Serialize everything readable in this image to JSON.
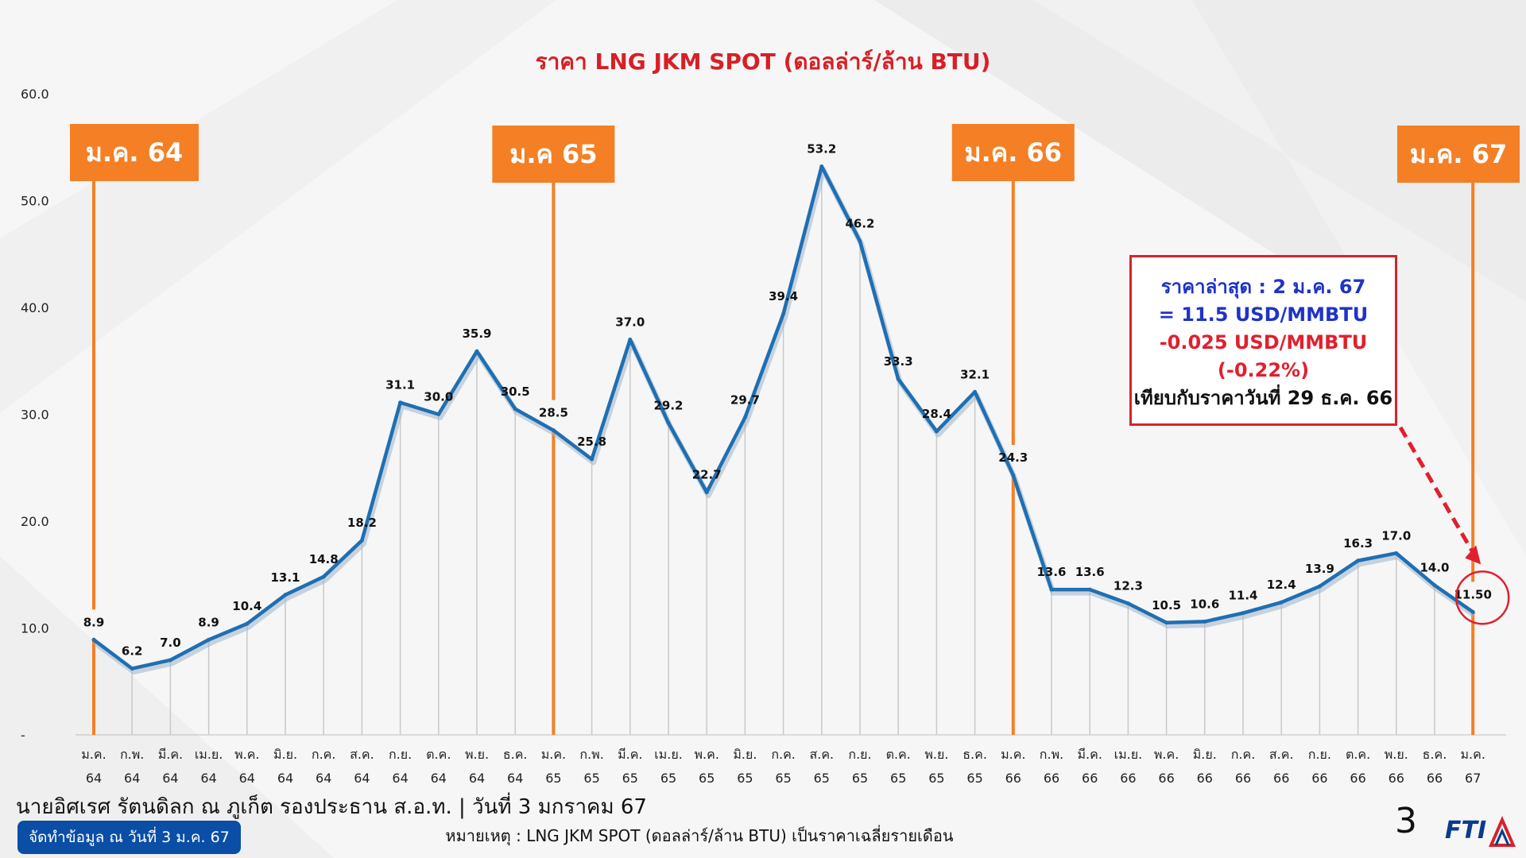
{
  "chart_data": {
    "type": "line",
    "title": "ราคา LNG JKM SPOT (ดอลล่าร์/ล้าน BTU)",
    "y_ticks": [
      "-",
      "10.0",
      "20.0",
      "30.0",
      "40.0",
      "50.0",
      "60.0"
    ],
    "ylim": [
      0,
      60
    ],
    "grid": "vertical drop lines",
    "categories": [
      [
        "ม.ค.",
        "64"
      ],
      [
        "ก.พ.",
        "64"
      ],
      [
        "มี.ค.",
        "64"
      ],
      [
        "เม.ย.",
        "64"
      ],
      [
        "พ.ค.",
        "64"
      ],
      [
        "มิ.ย.",
        "64"
      ],
      [
        "ก.ค.",
        "64"
      ],
      [
        "ส.ค.",
        "64"
      ],
      [
        "ก.ย.",
        "64"
      ],
      [
        "ต.ค.",
        "64"
      ],
      [
        "พ.ย.",
        "64"
      ],
      [
        "ธ.ค.",
        "64"
      ],
      [
        "ม.ค.",
        "65"
      ],
      [
        "ก.พ.",
        "65"
      ],
      [
        "มี.ค.",
        "65"
      ],
      [
        "เม.ย.",
        "65"
      ],
      [
        "พ.ค.",
        "65"
      ],
      [
        "มิ.ย.",
        "65"
      ],
      [
        "ก.ค.",
        "65"
      ],
      [
        "ส.ค.",
        "65"
      ],
      [
        "ก.ย.",
        "65"
      ],
      [
        "ต.ค.",
        "65"
      ],
      [
        "พ.ย.",
        "65"
      ],
      [
        "ธ.ค.",
        "65"
      ],
      [
        "ม.ค.",
        "66"
      ],
      [
        "ก.พ.",
        "66"
      ],
      [
        "มี.ค.",
        "66"
      ],
      [
        "เม.ย.",
        "66"
      ],
      [
        "พ.ค.",
        "66"
      ],
      [
        "มิ.ย.",
        "66"
      ],
      [
        "ก.ค.",
        "66"
      ],
      [
        "ส.ค.",
        "66"
      ],
      [
        "ก.ย.",
        "66"
      ],
      [
        "ต.ค.",
        "66"
      ],
      [
        "พ.ย.",
        "66"
      ],
      [
        "ธ.ค.",
        "66"
      ],
      [
        "ม.ค.",
        "67"
      ]
    ],
    "values": [
      8.9,
      6.2,
      7.0,
      8.9,
      10.4,
      13.1,
      14.8,
      18.2,
      31.1,
      30.0,
      35.9,
      30.5,
      28.5,
      25.8,
      37.0,
      29.2,
      22.7,
      29.7,
      39.4,
      53.2,
      46.2,
      33.3,
      28.4,
      32.1,
      24.3,
      13.6,
      13.6,
      12.3,
      10.5,
      10.6,
      11.4,
      12.4,
      13.9,
      16.3,
      17.0,
      14.0,
      11.5
    ],
    "value_labels": [
      "8.9",
      "6.2",
      "7.0",
      "8.9",
      "10.4",
      "13.1",
      "14.8",
      "18.2",
      "31.1",
      "30.0",
      "35.9",
      "30.5",
      "28.5",
      "25.8",
      "37.0",
      "29.2",
      "22.7",
      "29.7",
      "39.4",
      "53.2",
      "46.2",
      "33.3",
      "28.4",
      "32.1",
      "24.3",
      "13.6",
      "13.6",
      "12.3",
      "10.5",
      "10.6",
      "11.4",
      "12.4",
      "13.9",
      "16.3",
      "17.0",
      "14.0",
      "11.50"
    ],
    "markers": [
      {
        "label": "ม.ค. 64",
        "index": 0
      },
      {
        "label": "ม.ค 65",
        "index": 12
      },
      {
        "label": "ม.ค. 66",
        "index": 24
      },
      {
        "label": "ม.ค. 67",
        "index": 36
      }
    ],
    "line_color": "#1f6fb2",
    "marker_color": "#f47f25",
    "highlight_color": "#e0202e"
  },
  "info_box": {
    "line1": "ราคาล่าสุด : 2 ม.ค. 67",
    "line2": "= 11.5 USD/MMBTU",
    "line3": "-0.025 USD/MMBTU",
    "line4": "(-0.22%)",
    "line5": "เทียบกับราคาวันที่ 29 ธ.ค. 66"
  },
  "footer": {
    "presenter": "นายอิศเรศ รัตนดิลก ณ ภูเก็ต รองประธาน ส.อ.ท. | วันที่ 3 มกราคม 67",
    "badge": "จัดทำข้อมูล ณ วันที่ 3 ม.ค. 67",
    "note": "หมายเหตุ : LNG JKM SPOT (ดอลล่าร์/ล้าน BTU) เป็นราคาเฉลี่ยรายเดือน",
    "page_number": "3",
    "logo_text": "FTI"
  }
}
